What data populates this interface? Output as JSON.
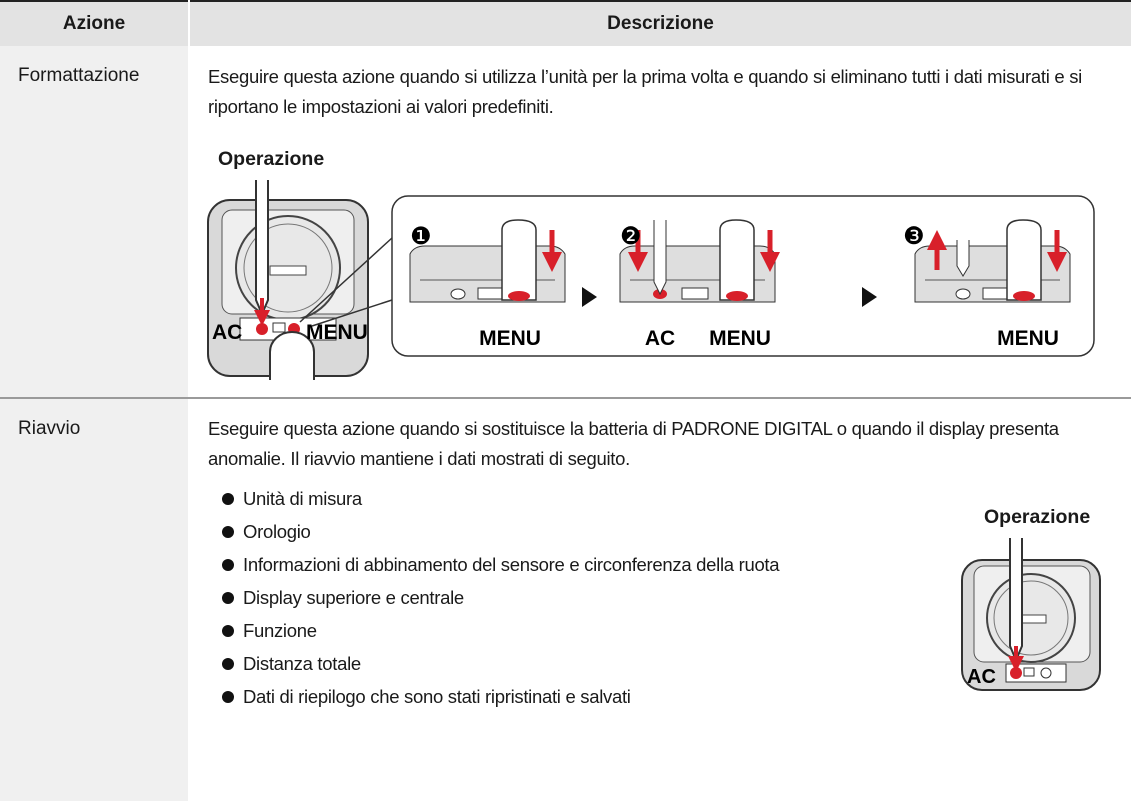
{
  "table": {
    "headers": [
      "Azione",
      "Descrizione"
    ],
    "rows": [
      {
        "action": "Formattazione",
        "description": "Eseguire questa azione quando si utilizza l’unità per la prima volta e quando si eliminano tutti i dati misurati e si riportano le impostazioni ai valori predefiniti.",
        "operation_title": "Operazione",
        "illustration": {
          "labels": [
            "AC",
            "MENU"
          ],
          "steps": [
            {
              "number": "❶",
              "labels": [
                "MENU"
              ]
            },
            {
              "number": "❷",
              "labels": [
                "AC",
                "MENU"
              ]
            },
            {
              "number": "❸",
              "labels": [
                "MENU"
              ]
            }
          ]
        }
      },
      {
        "action": "Riavvio",
        "description": "Eseguire questa azione quando si sostituisce la batteria di PADRONE DIGITAL o quando il display presenta anomalie. Il riavvio mantiene i dati mostrati di seguito.",
        "items": [
          "Unità di misura",
          "Orologio",
          "Informazioni di abbinamento del sensore e circonferenza della ruota",
          "Display superiore e centrale",
          "Funzione",
          "Distanza totale",
          "Dati di riepilogo che sono stati ripristinati e salvati"
        ],
        "operation_title": "Operazione",
        "illustration": {
          "labels": [
            "AC"
          ]
        }
      }
    ]
  }
}
